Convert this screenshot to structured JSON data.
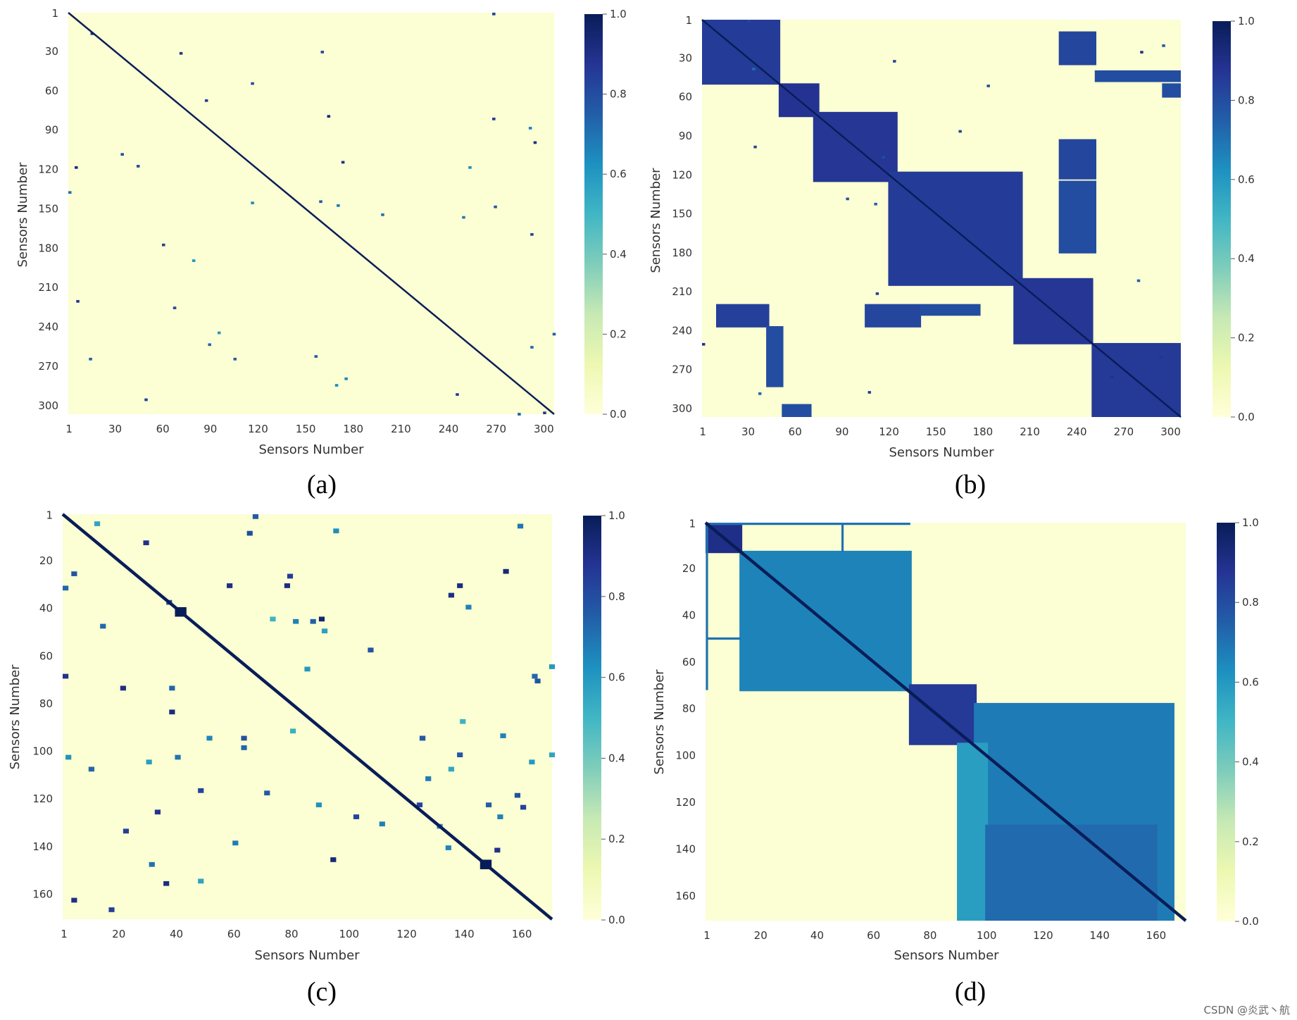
{
  "watermark": "CSDN @炎武丶航",
  "colorbar": {
    "colormap": "YlGnBu",
    "stops": [
      "#ffffd9",
      "#edf8b1",
      "#c7e9b4",
      "#7fcdbb",
      "#41b6c4",
      "#1d91c0",
      "#225ea8",
      "#253494",
      "#081d58"
    ],
    "ticks": [
      "0.0",
      "0.2",
      "0.4",
      "0.6",
      "0.8",
      "1.0"
    ],
    "tick_values": [
      0.0,
      0.2,
      0.4,
      0.6,
      0.8,
      1.0
    ]
  },
  "chart_data": [
    {
      "type": "heatmap",
      "caption": "(a)",
      "xlabel": "Sensors Number",
      "ylabel": "Sensors Number",
      "n": 306,
      "x_ticks": [
        "1",
        "30",
        "60",
        "90",
        "120",
        "150",
        "180",
        "210",
        "240",
        "270",
        "300"
      ],
      "y_ticks": [
        "1",
        "30",
        "60",
        "90",
        "120",
        "150",
        "180",
        "210",
        "240",
        "270",
        "300"
      ],
      "tick_values": [
        1,
        30,
        60,
        90,
        120,
        150,
        180,
        210,
        240,
        270,
        300
      ],
      "vmin": 0.0,
      "vmax": 1.0,
      "diagonal": 1.0,
      "blocks": [],
      "scatter": {
        "count": 40,
        "seed": 11,
        "min": 0.6,
        "max": 0.95,
        "size": 2
      },
      "lines": []
    },
    {
      "type": "heatmap",
      "caption": "(b)",
      "xlabel": "Sensors Number",
      "ylabel": "Sensors Number",
      "n": 306,
      "x_ticks": [
        "1",
        "30",
        "60",
        "90",
        "120",
        "150",
        "180",
        "210",
        "240",
        "270",
        "300"
      ],
      "y_ticks": [
        "1",
        "30",
        "60",
        "90",
        "120",
        "150",
        "180",
        "210",
        "240",
        "270",
        "300"
      ],
      "tick_values": [
        1,
        30,
        60,
        90,
        120,
        150,
        180,
        210,
        240,
        270,
        300
      ],
      "vmin": 0.0,
      "vmax": 1.0,
      "diagonal": 1.0,
      "blocks": [
        {
          "x0": 1,
          "x1": 50,
          "y0": 1,
          "y1": 50,
          "value": 0.85
        },
        {
          "x0": 50,
          "x1": 75,
          "y0": 50,
          "y1": 75,
          "value": 0.88
        },
        {
          "x0": 72,
          "x1": 125,
          "y0": 72,
          "y1": 125,
          "value": 0.87
        },
        {
          "x0": 120,
          "x1": 205,
          "y0": 118,
          "y1": 205,
          "value": 0.85
        },
        {
          "x0": 200,
          "x1": 250,
          "y0": 200,
          "y1": 250,
          "value": 0.87
        },
        {
          "x0": 250,
          "x1": 306,
          "y0": 250,
          "y1": 306,
          "value": 0.86
        },
        {
          "x0": 229,
          "x1": 252,
          "y0": 10,
          "y1": 35,
          "value": 0.82
        },
        {
          "x0": 229,
          "x1": 252,
          "y0": 93,
          "y1": 123,
          "value": 0.82
        },
        {
          "x0": 229,
          "x1": 252,
          "y0": 125,
          "y1": 180,
          "value": 0.8
        },
        {
          "x0": 10,
          "x1": 43,
          "y0": 220,
          "y1": 237,
          "value": 0.84
        },
        {
          "x0": 105,
          "x1": 140,
          "y0": 220,
          "y1": 237,
          "value": 0.82
        },
        {
          "x0": 140,
          "x1": 178,
          "y0": 220,
          "y1": 228,
          "value": 0.8
        },
        {
          "x0": 42,
          "x1": 52,
          "y0": 237,
          "y1": 283,
          "value": 0.8
        },
        {
          "x0": 52,
          "x1": 70,
          "y0": 297,
          "y1": 306,
          "value": 0.8
        },
        {
          "x0": 252,
          "x1": 306,
          "y0": 40,
          "y1": 48,
          "value": 0.8
        },
        {
          "x0": 295,
          "x1": 306,
          "y0": 50,
          "y1": 60,
          "value": 0.8
        }
      ],
      "scatter": {
        "count": 18,
        "seed": 29,
        "min": 0.7,
        "max": 0.9,
        "size": 2
      },
      "lines": []
    },
    {
      "type": "heatmap",
      "caption": "(c)",
      "xlabel": "Sensors Number",
      "ylabel": "Sensors Number",
      "n": 170,
      "x_ticks": [
        "1",
        "20",
        "40",
        "60",
        "80",
        "100",
        "120",
        "140",
        "160"
      ],
      "y_ticks": [
        "1",
        "20",
        "40",
        "60",
        "80",
        "100",
        "120",
        "140",
        "160"
      ],
      "tick_values": [
        1,
        20,
        40,
        60,
        80,
        100,
        120,
        140,
        160
      ],
      "vmin": 0.0,
      "vmax": 1.0,
      "diagonal": 1.0,
      "blocks": [
        {
          "x0": 40,
          "x1": 43,
          "y0": 40,
          "y1": 43,
          "value": 1.0
        },
        {
          "x0": 146,
          "x1": 149,
          "y0": 146,
          "y1": 149,
          "value": 1.0
        }
      ],
      "scatter": {
        "count": 70,
        "seed": 47,
        "min": 0.5,
        "max": 0.95,
        "size": 2
      },
      "lines": []
    },
    {
      "type": "heatmap",
      "caption": "(d)",
      "xlabel": "Sensors Number",
      "ylabel": "Sensors Number",
      "n": 170,
      "x_ticks": [
        "1",
        "20",
        "40",
        "60",
        "80",
        "100",
        "120",
        "140",
        "160"
      ],
      "y_ticks": [
        "1",
        "20",
        "40",
        "60",
        "80",
        "100",
        "120",
        "140",
        "160"
      ],
      "tick_values": [
        1,
        20,
        40,
        60,
        80,
        100,
        120,
        140,
        160
      ],
      "vmin": 0.0,
      "vmax": 1.0,
      "diagonal": 1.0,
      "blocks": [
        {
          "x0": 1,
          "x1": 13,
          "y0": 1,
          "y1": 13,
          "value": 0.9
        },
        {
          "x0": 13,
          "x1": 73,
          "y0": 13,
          "y1": 72,
          "value": 0.66
        },
        {
          "x0": 73,
          "x1": 96,
          "y0": 70,
          "y1": 95,
          "value": 0.86
        },
        {
          "x0": 96,
          "x1": 166,
          "y0": 78,
          "y1": 170,
          "value": 0.68
        },
        {
          "x0": 90,
          "x1": 100,
          "y0": 95,
          "y1": 170,
          "value": 0.58
        },
        {
          "x0": 100,
          "x1": 160,
          "y0": 130,
          "y1": 170,
          "value": 0.72
        }
      ],
      "scatter": {
        "count": 0,
        "seed": 5,
        "min": 0.6,
        "max": 0.8,
        "size": 2
      },
      "lines": [
        {
          "x0": 1,
          "x1": 73,
          "y0": 1,
          "y1": 1,
          "value": 0.7
        },
        {
          "x0": 1,
          "x1": 1,
          "y0": 1,
          "y1": 72,
          "value": 0.7
        },
        {
          "x0": 49,
          "x1": 49,
          "y0": 1,
          "y1": 13,
          "value": 0.7
        },
        {
          "x0": 1,
          "x1": 13,
          "y0": 50,
          "y1": 50,
          "value": 0.7
        }
      ]
    }
  ]
}
